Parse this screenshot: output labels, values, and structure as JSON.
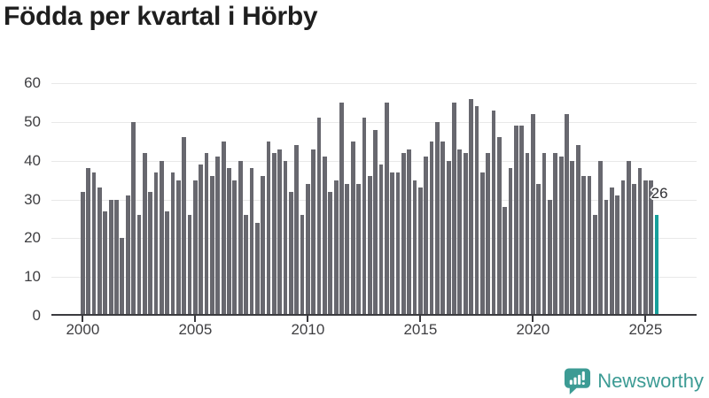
{
  "title": "Födda per kvartal i Hörby",
  "chart_data": {
    "type": "bar",
    "title": "Födda per kvartal i Hörby",
    "xlabel": "",
    "ylabel": "",
    "x_unit": "quarter",
    "first_quarter": "2000 Q1",
    "last_quarter": "2025 Q3",
    "values_by_year": [
      {
        "year": 2000,
        "values": [
          32,
          38,
          37,
          33
        ]
      },
      {
        "year": 2001,
        "values": [
          27,
          30,
          30,
          20
        ]
      },
      {
        "year": 2002,
        "values": [
          31,
          50,
          26,
          42
        ]
      },
      {
        "year": 2003,
        "values": [
          32,
          37,
          40,
          27
        ]
      },
      {
        "year": 2004,
        "values": [
          37,
          35,
          46,
          26
        ]
      },
      {
        "year": 2005,
        "values": [
          35,
          39,
          42,
          36
        ]
      },
      {
        "year": 2006,
        "values": [
          41,
          45,
          38,
          35
        ]
      },
      {
        "year": 2007,
        "values": [
          40,
          26,
          38,
          24
        ]
      },
      {
        "year": 2008,
        "values": [
          36,
          45,
          42,
          43
        ]
      },
      {
        "year": 2009,
        "values": [
          40,
          32,
          44,
          26
        ]
      },
      {
        "year": 2010,
        "values": [
          34,
          43,
          51,
          41
        ]
      },
      {
        "year": 2011,
        "values": [
          32,
          35,
          55,
          34
        ]
      },
      {
        "year": 2012,
        "values": [
          45,
          34,
          51,
          36
        ]
      },
      {
        "year": 2013,
        "values": [
          48,
          39,
          55,
          37
        ]
      },
      {
        "year": 2014,
        "values": [
          37,
          42,
          43,
          35
        ]
      },
      {
        "year": 2015,
        "values": [
          33,
          41,
          45,
          50
        ]
      },
      {
        "year": 2016,
        "values": [
          45,
          40,
          55,
          43
        ]
      },
      {
        "year": 2017,
        "values": [
          42,
          56,
          54,
          37
        ]
      },
      {
        "year": 2018,
        "values": [
          42,
          53,
          46,
          28
        ]
      },
      {
        "year": 2019,
        "values": [
          38,
          49,
          49,
          42
        ]
      },
      {
        "year": 2020,
        "values": [
          52,
          34,
          42,
          30
        ]
      },
      {
        "year": 2021,
        "values": [
          42,
          41,
          52,
          40
        ]
      },
      {
        "year": 2022,
        "values": [
          44,
          36,
          36,
          26
        ]
      },
      {
        "year": 2023,
        "values": [
          40,
          30,
          33,
          31
        ]
      },
      {
        "year": 2024,
        "values": [
          35,
          40,
          34,
          38
        ]
      },
      {
        "year": 2025,
        "values": [
          35,
          35,
          26
        ]
      }
    ],
    "highlight_last": true,
    "highlight_value_label": "26",
    "ylim": [
      0,
      60
    ],
    "yticks": [
      0,
      10,
      20,
      30,
      40,
      50,
      60
    ],
    "xticks": [
      2000,
      2005,
      2010,
      2015,
      2020,
      2025
    ],
    "grid": true,
    "legend": "none",
    "bar_color": "#68686f",
    "highlight_color": "#17a09b",
    "gridline_color": "#e8e8e8",
    "axis_color": "#3b3b3f"
  },
  "footer": {
    "brand": "Newsworthy",
    "brand_color": "#3c9b94"
  }
}
